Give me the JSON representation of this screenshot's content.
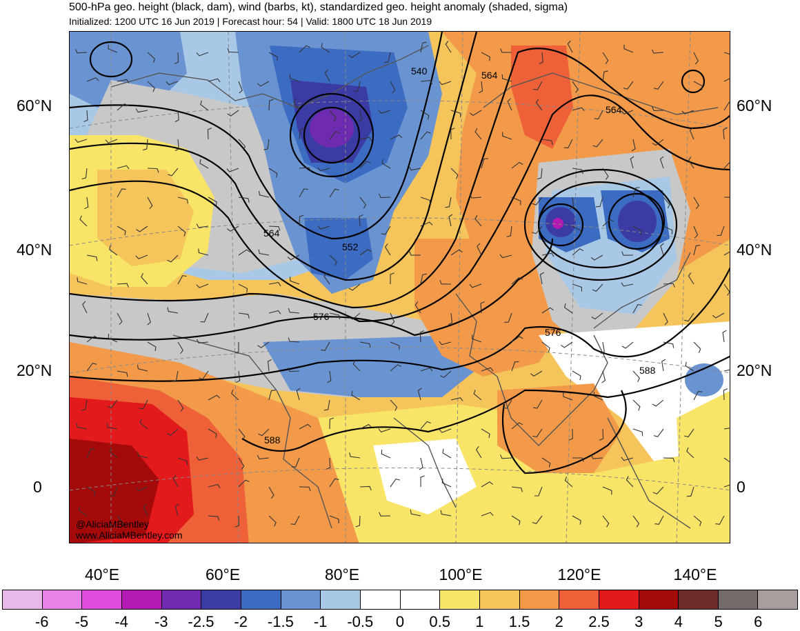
{
  "header": {
    "title": "500-hPa geo. height (black, dam), wind (barbs, kt), standardized geo. height anomaly (shaded, sigma)",
    "subtitle": "Initialized: 1200 UTC 16 Jun 2019 | Forecast hour: 54 | Valid: 1800 UTC 18 Jun 2019"
  },
  "map": {
    "lat_labels_left": [
      "60°N",
      "40°N",
      "20°N",
      "0"
    ],
    "lat_labels_right": [
      "60°N",
      "40°N",
      "20°N",
      "0"
    ],
    "lon_labels": [
      "40°E",
      "60°E",
      "80°E",
      "100°E",
      "120°E",
      "140°E"
    ],
    "contour_labels": [
      "540",
      "564",
      "564",
      "564",
      "552",
      "576",
      "576",
      "588",
      "588"
    ],
    "credit_line1": "@AliciaMBentley",
    "credit_line2": "www.AliciaMBentley.com"
  },
  "colorbar": {
    "ticks": [
      "-6",
      "-5",
      "-4",
      "-3",
      "-2.5",
      "-2",
      "-1.5",
      "-1",
      "-0.5",
      "0",
      "0.5",
      "1",
      "1.5",
      "2",
      "2.5",
      "3",
      "4",
      "5",
      "6"
    ],
    "colors": [
      "#e9b9e9",
      "#e882e8",
      "#dd4cdd",
      "#b21ab2",
      "#6f2bb0",
      "#3b3ba4",
      "#3b6cc2",
      "#6a93d2",
      "#a9c8e6",
      "#ffffff",
      "#ffffff",
      "#f8e467",
      "#f5c45a",
      "#f29a4a",
      "#ee6138",
      "#e31a1c",
      "#a50a0a",
      "#6e2a2a",
      "#756b6b",
      "#a89e9e"
    ]
  }
}
